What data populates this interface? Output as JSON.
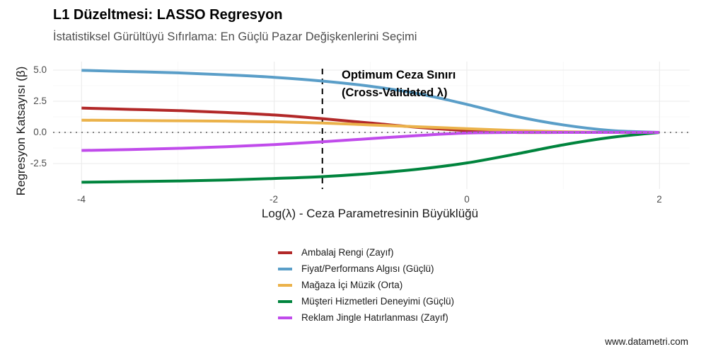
{
  "header": {
    "title": "L1 Düzeltmesi: LASSO Regresyon",
    "subtitle": "İstatistiksel Gürültüyü Sıfırlama: En Güçlü Pazar Değişkenlerini Seçimi"
  },
  "axes": {
    "xlabel": "Log(λ) - Ceza Parametresinin Büyüklüğü",
    "ylabel": "Regresyon Katsayısı (β)",
    "x_ticks": [
      "-4",
      "-2",
      "0",
      "2"
    ],
    "y_ticks": [
      "5.0",
      "2.5",
      "0.0",
      "-2.5"
    ]
  },
  "annotation": {
    "line1": "Optimum Ceza Sınırı",
    "line2": "(Cross-Validated λ)"
  },
  "legend": {
    "items": [
      {
        "label": "Ambalaj Rengi (Zayıf)",
        "color": "#B22828"
      },
      {
        "label": "Fiyat/Performans Algısı (Güçlü)",
        "color": "#5A9EC8"
      },
      {
        "label": "Mağaza İçi Müzik (Orta)",
        "color": "#EBB24A"
      },
      {
        "label": "Müşteri Hizmetleri Deneyimi (Güçlü)",
        "color": "#00843D"
      },
      {
        "label": "Reklam Jingle Hatırlanması (Zayıf)",
        "color": "#C04BEB"
      }
    ]
  },
  "caption": "www.datametri.com",
  "chart_data": {
    "type": "line",
    "title": "L1 Düzeltmesi: LASSO Regresyon",
    "subtitle": "İstatistiksel Gürültüyü Sıfırlama: En Güçlü Pazar Değişkenlerini Seçimi",
    "xlabel": "Log(λ) - Ceza Parametresinin Büyüklüğü",
    "ylabel": "Regresyon Katsayısı (β)",
    "xlim": [
      -4.3,
      2.3
    ],
    "ylim": [
      -4.6,
      5.7
    ],
    "x_ticks": [
      -4,
      -2,
      0,
      2
    ],
    "y_ticks": [
      -2.5,
      0.0,
      2.5,
      5.0
    ],
    "grid": true,
    "legend_position": "bottom",
    "x": [
      -4.0,
      -3.5,
      -3.0,
      -2.5,
      -2.0,
      -1.5,
      -1.0,
      -0.5,
      0.0,
      0.5,
      1.0,
      1.5,
      2.0
    ],
    "series": [
      {
        "name": "Ambalaj Rengi (Zayıf)",
        "color": "#B22828",
        "values": [
          1.95,
          1.85,
          1.75,
          1.6,
          1.4,
          1.1,
          0.75,
          0.4,
          0.15,
          0.0,
          0.0,
          0.0,
          0.0
        ]
      },
      {
        "name": "Fiyat/Performans Algısı (Güçlü)",
        "color": "#5A9EC8",
        "values": [
          4.98,
          4.88,
          4.78,
          4.62,
          4.42,
          4.12,
          3.7,
          3.1,
          2.25,
          1.3,
          0.6,
          0.15,
          0.0
        ]
      },
      {
        "name": "Mağaza İçi Müzik (Orta)",
        "color": "#EBB24A",
        "values": [
          0.98,
          0.96,
          0.93,
          0.9,
          0.85,
          0.75,
          0.6,
          0.45,
          0.3,
          0.15,
          0.05,
          0.0,
          0.0
        ]
      },
      {
        "name": "Müşteri Hizmetleri Deneyimi (Güçlü)",
        "color": "#00843D",
        "values": [
          -4.0,
          -3.95,
          -3.9,
          -3.82,
          -3.7,
          -3.55,
          -3.3,
          -2.95,
          -2.45,
          -1.75,
          -1.0,
          -0.4,
          0.0
        ]
      },
      {
        "name": "Reklam Jingle Hatırlanması (Zayıf)",
        "color": "#C04BEB",
        "values": [
          -1.45,
          -1.38,
          -1.28,
          -1.15,
          -0.98,
          -0.75,
          -0.5,
          -0.25,
          -0.05,
          0.0,
          0.0,
          0.0,
          0.0
        ]
      }
    ],
    "reference_lines": [
      {
        "type": "horizontal",
        "y": 0.0,
        "style": "dotted",
        "color": "#808080"
      },
      {
        "type": "vertical",
        "x": -1.5,
        "style": "dashed",
        "color": "#000000",
        "label": "Optimum Ceza Sınırı (Cross-Validated λ)"
      }
    ]
  }
}
